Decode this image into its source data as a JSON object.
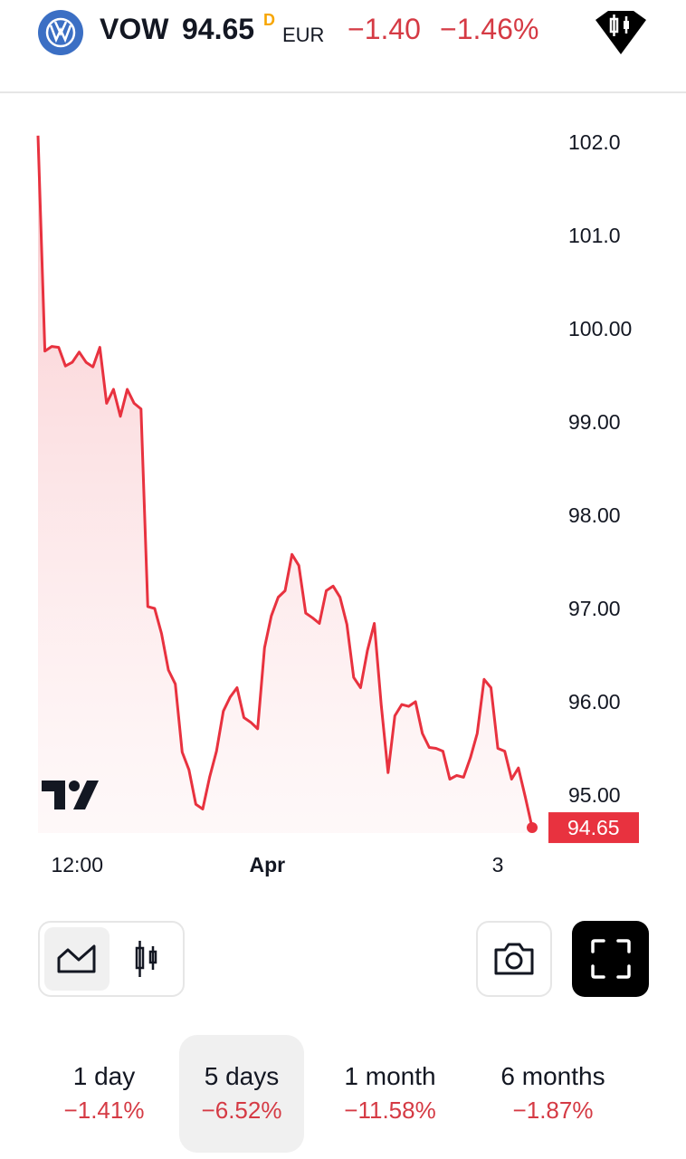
{
  "header": {
    "symbol": "VOW",
    "price": "94.65",
    "delay_marker": "D",
    "currency": "EUR",
    "change": "−1.40",
    "change_percent": "−1.46%",
    "logo_icon": "volkswagen-logo",
    "right_icon": "candlestick-badge-icon"
  },
  "colors": {
    "accent_red": "#d53a44",
    "line": "#e8323f",
    "logo_blue": "#3b6fc4",
    "delay": "#f7a600"
  },
  "chart_data": {
    "type": "area",
    "values": [
      102.07,
      99.76,
      99.81,
      99.8,
      99.6,
      99.64,
      99.75,
      99.64,
      99.59,
      99.8,
      99.2,
      99.35,
      99.06,
      99.35,
      99.2,
      99.14,
      97.02,
      97.0,
      96.73,
      96.34,
      96.19,
      95.46,
      95.27,
      94.9,
      94.85,
      95.19,
      95.47,
      95.9,
      96.05,
      96.15,
      95.83,
      95.78,
      95.71,
      96.58,
      96.92,
      97.12,
      97.19,
      97.58,
      97.46,
      96.95,
      96.9,
      96.84,
      97.19,
      97.24,
      97.12,
      96.83,
      96.26,
      96.15,
      96.55,
      96.84,
      95.97,
      95.24,
      95.85,
      95.97,
      95.95,
      96.0,
      95.66,
      95.51,
      95.5,
      95.47,
      95.17,
      95.21,
      95.19,
      95.4,
      95.66,
      96.24,
      96.15,
      95.5,
      95.47,
      95.17,
      95.29,
      94.98,
      94.65
    ],
    "y_ticks": [
      "102.0",
      "101.0",
      "100.00",
      "99.00",
      "98.00",
      "97.00",
      "96.00",
      "95.00"
    ],
    "y_tick_values": [
      102,
      101,
      100,
      99,
      98,
      97,
      96,
      95
    ],
    "x_ticks": [
      {
        "label": "12:00",
        "index": 5.7
      },
      {
        "label": "Apr",
        "index": 33.4
      },
      {
        "label": "3",
        "index": 67
      }
    ],
    "last_price_label": "94.65",
    "grid": false
  },
  "toolbar": {
    "area_icon": "area-chart-icon",
    "candles_icon": "candlestick-icon",
    "camera_icon": "camera-icon",
    "fullscreen_icon": "fullscreen-icon"
  },
  "periods": [
    {
      "label": "1 day",
      "value": "−1.41%"
    },
    {
      "label": "5 days",
      "value": "−6.52%",
      "active": true
    },
    {
      "label": "1 month",
      "value": "−11.58%"
    },
    {
      "label": "6 months",
      "value": "−1.87%"
    }
  ]
}
